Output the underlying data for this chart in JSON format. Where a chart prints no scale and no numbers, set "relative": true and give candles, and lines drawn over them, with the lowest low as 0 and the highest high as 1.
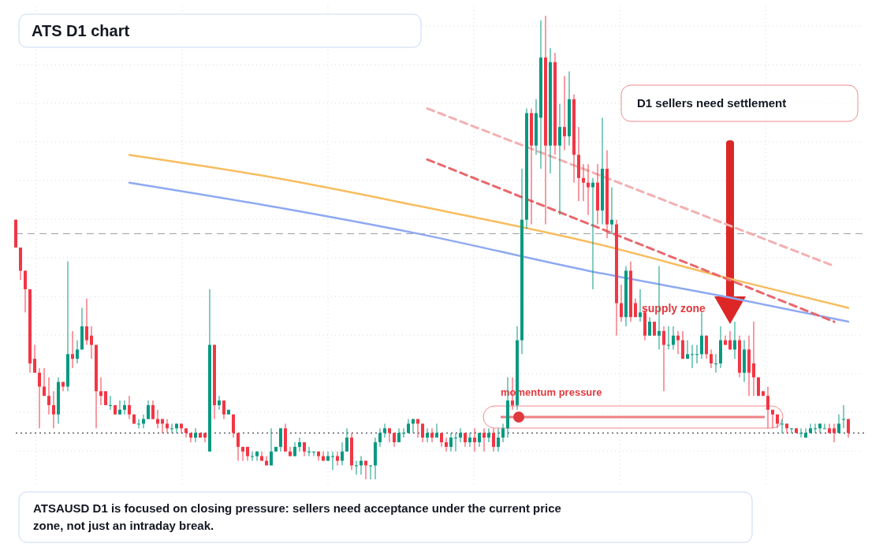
{
  "chart_data": {
    "type": "candlestick",
    "title": "ATS D1 chart",
    "annotations": [
      "D1 sellers need settlement",
      "supply zone",
      "momentum pressure",
      "ATSAUSD D1 is focused on closing pressure: sellers need acceptance under the current price zone, not just an intraday break."
    ],
    "relative": true,
    "grid": true,
    "categories": [
      null,
      null,
      null,
      null,
      null,
      null,
      null,
      null,
      null,
      null,
      null,
      null,
      null,
      null,
      null,
      null,
      null,
      null,
      null,
      null,
      null,
      null,
      null,
      null,
      null,
      null,
      null,
      null,
      null,
      null,
      null,
      null,
      null,
      null,
      null,
      null,
      null,
      null,
      null,
      null,
      null,
      null,
      null,
      null,
      null,
      null,
      null,
      null,
      null,
      null,
      null,
      null,
      null,
      null,
      null,
      null,
      null,
      null,
      null,
      null,
      null,
      null,
      null,
      null,
      null,
      null,
      null,
      null,
      null,
      null,
      null,
      null,
      null,
      null,
      null,
      null,
      null,
      null,
      null,
      null,
      null,
      null,
      null,
      null,
      null,
      null,
      null,
      null,
      null,
      null,
      null,
      null,
      null,
      null,
      null,
      null,
      null,
      null,
      null,
      null,
      null,
      null,
      null,
      null,
      null,
      null,
      null,
      null,
      null,
      null,
      null,
      null,
      null,
      null,
      null,
      null,
      null,
      null,
      null,
      null,
      null,
      null,
      null,
      null,
      null,
      null,
      null,
      null,
      null,
      null,
      null,
      null,
      null,
      null,
      null,
      null,
      null,
      null,
      null,
      null,
      null,
      null,
      null,
      null,
      null,
      null,
      null,
      null,
      null,
      null,
      null,
      null,
      null,
      null,
      null,
      null,
      null,
      null,
      null,
      null,
      null,
      null,
      null,
      null,
      null,
      null,
      null,
      null,
      null,
      null,
      null,
      null,
      null,
      null,
      null,
      null,
      null
    ],
    "ohlc": [
      [
        0.56,
        0.56,
        0.5,
        0.5
      ],
      [
        0.5,
        0.5,
        0.43,
        0.45
      ],
      [
        0.45,
        0.45,
        0.36,
        0.41
      ],
      [
        0.41,
        0.41,
        0.23,
        0.25
      ],
      [
        0.26,
        0.29,
        0.23,
        0.23
      ],
      [
        0.23,
        0.24,
        0.11,
        0.2
      ],
      [
        0.2,
        0.24,
        0.18,
        0.18
      ],
      [
        0.18,
        0.22,
        0.14,
        0.16
      ],
      [
        0.16,
        0.19,
        0.11,
        0.14
      ],
      [
        0.14,
        0.22,
        0.12,
        0.21
      ],
      [
        0.21,
        0.21,
        0.19,
        0.2
      ],
      [
        0.2,
        0.47,
        0.19,
        0.27
      ],
      [
        0.27,
        0.32,
        0.24,
        0.26
      ],
      [
        0.26,
        0.3,
        0.25,
        0.28
      ],
      [
        0.28,
        0.37,
        0.28,
        0.33
      ],
      [
        0.33,
        0.39,
        0.29,
        0.3
      ],
      [
        0.31,
        0.33,
        0.26,
        0.29
      ],
      [
        0.29,
        0.29,
        0.11,
        0.19
      ],
      [
        0.19,
        0.22,
        0.16,
        0.18
      ],
      [
        0.19,
        0.19,
        0.16,
        0.16
      ],
      [
        0.16,
        0.18,
        0.15,
        0.16
      ],
      [
        0.16,
        0.16,
        0.14,
        0.14
      ],
      [
        0.14,
        0.17,
        0.14,
        0.15
      ],
      [
        0.15,
        0.17,
        0.14,
        0.16
      ],
      [
        0.16,
        0.18,
        0.13,
        0.14
      ],
      [
        0.14,
        0.14,
        0.12,
        0.12
      ],
      [
        0.12,
        0.13,
        0.11,
        0.12
      ],
      [
        0.12,
        0.14,
        0.11,
        0.13
      ],
      [
        0.13,
        0.17,
        0.13,
        0.16
      ],
      [
        0.16,
        0.17,
        0.13,
        0.13
      ],
      [
        0.13,
        0.15,
        0.11,
        0.12
      ],
      [
        0.13,
        0.13,
        0.1,
        0.12
      ],
      [
        0.12,
        0.13,
        0.1,
        0.11
      ],
      [
        0.11,
        0.12,
        0.1,
        0.11
      ],
      [
        0.11,
        0.12,
        0.1,
        0.12
      ],
      [
        0.12,
        0.12,
        0.1,
        0.11
      ],
      [
        0.11,
        0.11,
        0.09,
        0.1
      ],
      [
        0.1,
        0.1,
        0.08,
        0.09
      ],
      [
        0.09,
        0.11,
        0.08,
        0.1
      ],
      [
        0.1,
        0.1,
        0.09,
        0.09
      ],
      [
        0.1,
        0.1,
        0.08,
        0.09
      ],
      [
        0.06,
        0.41,
        0.06,
        0.29
      ],
      [
        0.29,
        0.29,
        0.13,
        0.16
      ],
      [
        0.16,
        0.18,
        0.15,
        0.17
      ],
      [
        0.17,
        0.17,
        0.13,
        0.14
      ],
      [
        0.14,
        0.15,
        0.14,
        0.15
      ],
      [
        0.14,
        0.14,
        0.09,
        0.1
      ],
      [
        0.1,
        0.1,
        0.04,
        0.07
      ],
      [
        0.07,
        0.07,
        0.04,
        0.06
      ],
      [
        0.07,
        0.07,
        0.04,
        0.05
      ],
      [
        0.05,
        0.06,
        0.04,
        0.05
      ],
      [
        0.05,
        0.06,
        0.04,
        0.06
      ],
      [
        0.05,
        0.06,
        0.04,
        0.04
      ],
      [
        0.04,
        0.05,
        0.03,
        0.03
      ],
      [
        0.03,
        0.11,
        0.03,
        0.06
      ],
      [
        0.06,
        0.07,
        0.06,
        0.07
      ],
      [
        0.07,
        0.11,
        0.06,
        0.11
      ],
      [
        0.11,
        0.12,
        0.06,
        0.06
      ],
      [
        0.06,
        0.07,
        0.05,
        0.05
      ],
      [
        0.05,
        0.08,
        0.05,
        0.07
      ],
      [
        0.07,
        0.09,
        0.06,
        0.08
      ],
      [
        0.08,
        0.08,
        0.05,
        0.06
      ],
      [
        0.06,
        0.07,
        0.05,
        0.06
      ],
      [
        0.06,
        0.06,
        0.05,
        0.06
      ],
      [
        0.06,
        0.06,
        0.04,
        0.05
      ],
      [
        0.05,
        0.06,
        0.04,
        0.04
      ],
      [
        0.04,
        0.06,
        0.04,
        0.05
      ],
      [
        0.05,
        0.06,
        0.02,
        0.05
      ],
      [
        0.05,
        0.06,
        0.03,
        0.04
      ],
      [
        0.04,
        0.08,
        0.03,
        0.06
      ],
      [
        0.06,
        0.11,
        0.06,
        0.09
      ],
      [
        0.09,
        0.1,
        0.02,
        0.03
      ],
      [
        0.03,
        0.04,
        0.01,
        0.03
      ],
      [
        0.03,
        0.05,
        0.01,
        0.04
      ],
      [
        0.04,
        0.04,
        0.0,
        0.03
      ],
      [
        0.03,
        0.03,
        0.0,
        0.03
      ],
      [
        0.03,
        0.09,
        0.0,
        0.08
      ],
      [
        0.08,
        0.11,
        0.07,
        0.1
      ],
      [
        0.1,
        0.12,
        0.09,
        0.11
      ],
      [
        0.11,
        0.11,
        0.08,
        0.1
      ],
      [
        0.1,
        0.1,
        0.07,
        0.08
      ],
      [
        0.08,
        0.11,
        0.08,
        0.1
      ],
      [
        0.1,
        0.11,
        0.09,
        0.1
      ],
      [
        0.1,
        0.13,
        0.1,
        0.12
      ],
      [
        0.12,
        0.13,
        0.1,
        0.13
      ],
      [
        0.13,
        0.13,
        0.09,
        0.12
      ],
      [
        0.12,
        0.12,
        0.08,
        0.09
      ],
      [
        0.09,
        0.11,
        0.08,
        0.1
      ],
      [
        0.1,
        0.11,
        0.08,
        0.09
      ],
      [
        0.09,
        0.12,
        0.09,
        0.1
      ],
      [
        0.1,
        0.1,
        0.07,
        0.08
      ],
      [
        0.08,
        0.09,
        0.06,
        0.07
      ],
      [
        0.07,
        0.1,
        0.06,
        0.09
      ],
      [
        0.09,
        0.1,
        0.06,
        0.09
      ],
      [
        0.09,
        0.11,
        0.08,
        0.1
      ],
      [
        0.1,
        0.1,
        0.07,
        0.08
      ],
      [
        0.08,
        0.1,
        0.07,
        0.09
      ],
      [
        0.09,
        0.11,
        0.06,
        0.08
      ],
      [
        0.08,
        0.1,
        0.07,
        0.1
      ],
      [
        0.1,
        0.11,
        0.06,
        0.09
      ],
      [
        0.09,
        0.11,
        0.08,
        0.1
      ],
      [
        0.1,
        0.11,
        0.06,
        0.07
      ],
      [
        0.07,
        0.11,
        0.06,
        0.09
      ],
      [
        0.09,
        0.12,
        0.08,
        0.11
      ],
      [
        0.11,
        0.22,
        0.09,
        0.17
      ],
      [
        0.17,
        0.22,
        0.15,
        0.16
      ],
      [
        0.16,
        0.33,
        0.15,
        0.3
      ],
      [
        0.3,
        0.67,
        0.27,
        0.56
      ],
      [
        0.56,
        0.8,
        0.54,
        0.79
      ],
      [
        0.79,
        0.8,
        0.55,
        0.72
      ],
      [
        0.72,
        0.82,
        0.7,
        0.79
      ],
      [
        0.78,
        0.99,
        0.67,
        0.91
      ],
      [
        0.91,
        1.0,
        0.55,
        0.72
      ],
      [
        0.72,
        0.93,
        0.66,
        0.9
      ],
      [
        0.9,
        0.92,
        0.7,
        0.72
      ],
      [
        0.72,
        0.81,
        0.57,
        0.76
      ],
      [
        0.76,
        0.87,
        0.71,
        0.74
      ],
      [
        0.74,
        0.88,
        0.72,
        0.82
      ],
      [
        0.82,
        0.83,
        0.64,
        0.7
      ],
      [
        0.7,
        0.76,
        0.6,
        0.65
      ],
      [
        0.65,
        0.68,
        0.6,
        0.64
      ],
      [
        0.64,
        0.68,
        0.57,
        0.63
      ],
      [
        0.63,
        0.65,
        0.41,
        0.64
      ],
      [
        0.64,
        0.68,
        0.55,
        0.58
      ],
      [
        0.58,
        0.78,
        0.55,
        0.67
      ],
      [
        0.67,
        0.71,
        0.52,
        0.55
      ],
      [
        0.55,
        0.63,
        0.53,
        0.56
      ],
      [
        0.55,
        0.56,
        0.31,
        0.38
      ],
      [
        0.38,
        0.42,
        0.34,
        0.35
      ],
      [
        0.35,
        0.46,
        0.33,
        0.45
      ],
      [
        0.45,
        0.47,
        0.34,
        0.35
      ],
      [
        0.38,
        0.39,
        0.35,
        0.35
      ],
      [
        0.35,
        0.41,
        0.34,
        0.36
      ],
      [
        0.36,
        0.37,
        0.3,
        0.31
      ],
      [
        0.31,
        0.35,
        0.31,
        0.34
      ],
      [
        0.34,
        0.34,
        0.31,
        0.31
      ],
      [
        0.31,
        0.46,
        0.28,
        0.32
      ],
      [
        0.32,
        0.33,
        0.19,
        0.29
      ],
      [
        0.29,
        0.33,
        0.28,
        0.29
      ],
      [
        0.29,
        0.33,
        0.28,
        0.31
      ],
      [
        0.31,
        0.32,
        0.27,
        0.3
      ],
      [
        0.3,
        0.32,
        0.26,
        0.26
      ],
      [
        0.26,
        0.3,
        0.26,
        0.27
      ],
      [
        0.27,
        0.29,
        0.24,
        0.27
      ],
      [
        0.27,
        0.29,
        0.25,
        0.27
      ],
      [
        0.27,
        0.36,
        0.26,
        0.31
      ],
      [
        0.31,
        0.31,
        0.26,
        0.27
      ],
      [
        0.27,
        0.28,
        0.24,
        0.25
      ],
      [
        0.25,
        0.27,
        0.23,
        0.25
      ],
      [
        0.25,
        0.33,
        0.24,
        0.3
      ],
      [
        0.3,
        0.31,
        0.29,
        0.29
      ],
      [
        0.3,
        0.32,
        0.28,
        0.28
      ],
      [
        0.28,
        0.34,
        0.26,
        0.3
      ],
      [
        0.3,
        0.31,
        0.22,
        0.23
      ],
      [
        0.23,
        0.3,
        0.21,
        0.28
      ],
      [
        0.28,
        0.31,
        0.18,
        0.23
      ],
      [
        0.25,
        0.34,
        0.18,
        0.22
      ],
      [
        0.22,
        0.22,
        0.18,
        0.18
      ],
      [
        0.19,
        0.19,
        0.18,
        0.18
      ],
      [
        0.18,
        0.2,
        0.11,
        0.15
      ],
      [
        0.15,
        0.15,
        0.11,
        0.14
      ],
      [
        0.14,
        0.14,
        0.11,
        0.12
      ],
      [
        0.12,
        0.13,
        0.1,
        0.12
      ],
      [
        0.12,
        0.12,
        0.1,
        0.11
      ],
      [
        0.11,
        0.11,
        0.1,
        0.11
      ],
      [
        0.11,
        0.11,
        0.1,
        0.1
      ],
      [
        0.1,
        0.11,
        0.09,
        0.1
      ],
      [
        0.09,
        0.11,
        0.09,
        0.1
      ],
      [
        0.1,
        0.12,
        0.1,
        0.11
      ],
      [
        0.11,
        0.12,
        0.1,
        0.11
      ],
      [
        0.11,
        0.12,
        0.1,
        0.12
      ],
      [
        0.11,
        0.12,
        0.11,
        0.11
      ],
      [
        0.11,
        0.12,
        0.1,
        0.1
      ],
      [
        0.11,
        0.12,
        0.08,
        0.1
      ],
      [
        0.1,
        0.14,
        0.1,
        0.12
      ],
      [
        0.13,
        0.16,
        0.11,
        0.13
      ],
      [
        0.13,
        0.13,
        0.09,
        0.1
      ]
    ],
    "series": [
      {
        "type": "line",
        "color": "#f7bd5f",
        "line_style": "solid",
        "values": [
          null,
          null,
          null,
          null,
          null,
          null,
          null,
          null,
          null,
          null,
          null,
          null,
          null,
          null,
          null,
          null,
          null,
          null,
          null,
          null,
          null,
          null,
          null,
          null,
          0.7,
          null,
          null,
          null,
          null,
          null,
          null,
          null,
          null,
          null,
          null,
          null,
          null,
          null,
          null,
          null,
          null,
          null,
          null,
          null,
          null,
          null,
          null,
          null,
          null,
          null,
          null,
          null,
          null,
          null,
          null,
          0.65,
          null,
          null,
          null,
          null,
          null,
          null,
          null,
          null,
          null,
          null,
          null,
          null,
          null,
          null,
          null,
          null,
          null,
          null,
          null,
          null,
          null,
          null,
          null,
          null,
          null,
          null,
          null,
          null,
          null,
          0.59,
          null,
          null,
          null,
          null,
          null,
          null,
          null,
          null,
          null,
          null,
          null,
          null,
          null,
          null,
          null,
          null,
          null,
          null,
          null,
          null,
          null,
          null,
          null,
          null,
          null,
          null,
          null,
          null,
          null,
          null,
          null,
          null,
          null,
          null,
          null,
          null,
          0.51,
          null,
          null,
          null,
          null,
          null,
          null,
          null,
          null,
          null,
          null,
          null,
          null,
          null,
          null,
          null,
          null,
          null,
          null,
          null,
          null,
          null,
          null,
          null,
          null,
          null,
          null,
          null,
          null,
          null,
          0.43,
          null,
          null,
          null,
          null,
          null,
          null,
          null,
          null,
          null,
          null,
          null,
          null,
          null,
          null,
          null,
          null,
          null,
          null,
          null,
          null,
          null,
          null,
          null,
          0.37
        ]
      },
      {
        "type": "line",
        "color": "#8ea9f2",
        "line_style": "solid",
        "values": [
          null,
          null,
          null,
          null,
          null,
          null,
          null,
          null,
          null,
          null,
          null,
          null,
          null,
          null,
          null,
          null,
          null,
          null,
          null,
          null,
          null,
          null,
          null,
          null,
          0.64,
          null,
          null,
          null,
          null,
          null,
          null,
          null,
          null,
          null,
          null,
          null,
          null,
          null,
          null,
          null,
          null,
          null,
          null,
          null,
          null,
          null,
          null,
          null,
          null,
          null,
          null,
          null,
          null,
          null,
          null,
          null,
          null,
          null,
          null,
          0.58,
          null,
          null,
          null,
          null,
          null,
          null,
          null,
          null,
          null,
          null,
          null,
          null,
          null,
          null,
          null,
          null,
          null,
          null,
          null,
          null,
          null,
          null,
          null,
          null,
          null,
          0.53,
          null,
          null,
          null,
          null,
          null,
          null,
          null,
          null,
          null,
          null,
          null,
          null,
          null,
          null,
          null,
          null,
          null,
          null,
          null,
          null,
          null,
          null,
          null,
          null,
          null,
          null,
          null,
          null,
          null,
          null,
          null,
          null,
          null,
          null,
          null,
          0.45,
          null,
          null,
          null,
          null,
          null,
          null,
          null,
          null,
          null,
          null,
          null,
          null,
          null,
          null,
          null,
          null,
          null,
          null,
          null,
          null,
          null,
          null,
          null,
          null,
          null,
          null,
          null,
          null,
          null,
          null,
          0.39,
          null,
          null,
          null,
          null,
          null,
          null,
          null,
          null,
          null,
          null,
          null,
          null,
          null,
          null,
          null,
          null,
          null,
          null,
          null,
          null,
          null,
          null,
          null,
          0.34
        ]
      },
      {
        "type": "line",
        "color": "#e8686c",
        "line_style": "dashed",
        "values": [
          null,
          null,
          null,
          null,
          null,
          null,
          null,
          null,
          null,
          null,
          null,
          null,
          null,
          null,
          null,
          null,
          null,
          null,
          null,
          null,
          null,
          null,
          null,
          null,
          null,
          null,
          null,
          null,
          null,
          null,
          null,
          null,
          null,
          null,
          null,
          null,
          null,
          null,
          null,
          null,
          null,
          null,
          null,
          null,
          null,
          null,
          null,
          null,
          null,
          null,
          null,
          null,
          null,
          null,
          null,
          null,
          null,
          null,
          null,
          null,
          null,
          null,
          null,
          null,
          null,
          null,
          null,
          null,
          null,
          null,
          null,
          null,
          null,
          null,
          null,
          null,
          null,
          null,
          null,
          null,
          null,
          null,
          null,
          null,
          null,
          null,
          null,
          0.69,
          null,
          null,
          null,
          null,
          null,
          null,
          null,
          null,
          null,
          null,
          null,
          null,
          null,
          null,
          null,
          null,
          null,
          null,
          null,
          null,
          null,
          null,
          null,
          null,
          null,
          null,
          null,
          null,
          null,
          null,
          null,
          null,
          null,
          null,
          null,
          null,
          null,
          null,
          null,
          null,
          null,
          null,
          null,
          null,
          null,
          null,
          null,
          null,
          null,
          null,
          null,
          null,
          null,
          null,
          null,
          null,
          null,
          null,
          null,
          null,
          null,
          null,
          null,
          null,
          null,
          null,
          null,
          null,
          null,
          null,
          null,
          null,
          null,
          null,
          null,
          null,
          null,
          null,
          null,
          null,
          null,
          null,
          null,
          null,
          null,
          0.34,
          null,
          null,
          null
        ]
      },
      {
        "type": "line",
        "color": "#f3b0b2",
        "line_style": "dashed",
        "values": [
          null,
          null,
          null,
          null,
          null,
          null,
          null,
          null,
          null,
          null,
          null,
          null,
          null,
          null,
          null,
          null,
          null,
          null,
          null,
          null,
          null,
          null,
          null,
          null,
          null,
          null,
          null,
          null,
          null,
          null,
          null,
          null,
          null,
          null,
          null,
          null,
          null,
          null,
          null,
          null,
          null,
          null,
          null,
          null,
          null,
          null,
          null,
          null,
          null,
          null,
          null,
          null,
          null,
          null,
          null,
          null,
          null,
          null,
          null,
          null,
          null,
          null,
          null,
          null,
          null,
          null,
          null,
          null,
          null,
          null,
          null,
          null,
          null,
          null,
          null,
          null,
          null,
          null,
          null,
          null,
          null,
          null,
          null,
          null,
          null,
          null,
          null,
          0.8,
          null,
          null,
          null,
          null,
          null,
          null,
          null,
          null,
          null,
          null,
          null,
          null,
          null,
          null,
          null,
          null,
          null,
          null,
          null,
          null,
          null,
          null,
          null,
          null,
          null,
          null,
          null,
          null,
          null,
          null,
          null,
          null,
          null,
          null,
          null,
          null,
          null,
          null,
          null,
          null,
          null,
          null,
          null,
          null,
          null,
          null,
          null,
          null,
          null,
          null,
          null,
          null,
          null,
          null,
          null,
          null,
          null,
          null,
          null,
          null,
          null,
          null,
          null,
          null,
          null,
          null,
          null,
          null,
          null,
          null,
          null,
          null,
          null,
          null,
          null,
          null,
          null,
          null,
          null,
          null,
          null,
          null,
          null,
          null,
          null,
          0.46,
          null,
          null,
          null
        ]
      }
    ],
    "ref_lines": [
      {
        "axis": "y",
        "value": 0.53,
        "color": "#9598a1",
        "line_style": "dashed"
      },
      {
        "axis": "y",
        "value": 0.1,
        "color": "#131722",
        "line_style": "dotted"
      }
    ]
  }
}
